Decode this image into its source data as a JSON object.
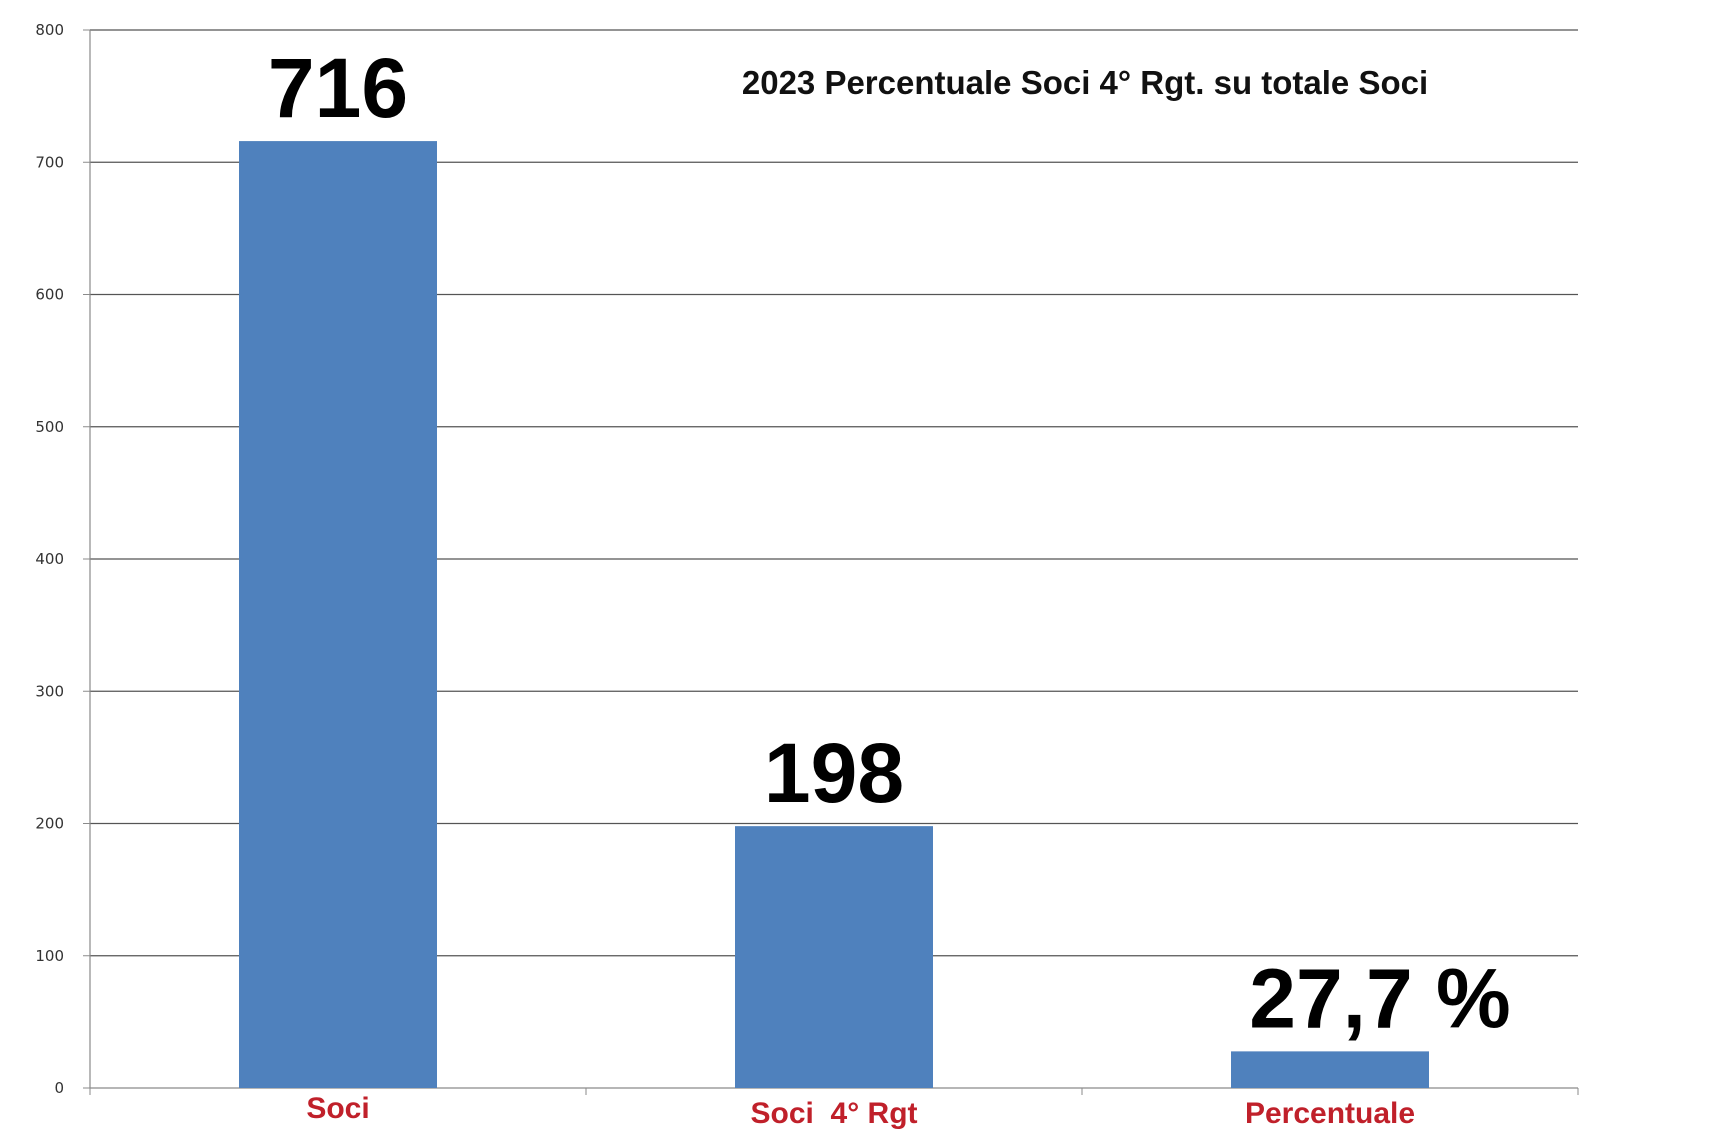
{
  "chart_data": {
    "type": "bar",
    "title": "2023 Percentuale Soci 4° Rgt. su totale Soci",
    "categories": [
      "Soci",
      "Soci  4° Rgt",
      "Percentuale"
    ],
    "values": [
      716,
      198,
      27.7
    ],
    "value_labels": [
      "716",
      "198",
      "27,7 %"
    ],
    "ylim": [
      0,
      800
    ],
    "yticks": [
      0,
      100,
      200,
      300,
      400,
      500,
      600,
      700,
      800
    ],
    "grid": true,
    "legend": "none",
    "xlabel": "",
    "ylabel": ""
  },
  "colors": {
    "bar": "#4f81bd",
    "category_label": "#c0202a",
    "grid": "#555555",
    "axis": "#8a8a8a"
  }
}
